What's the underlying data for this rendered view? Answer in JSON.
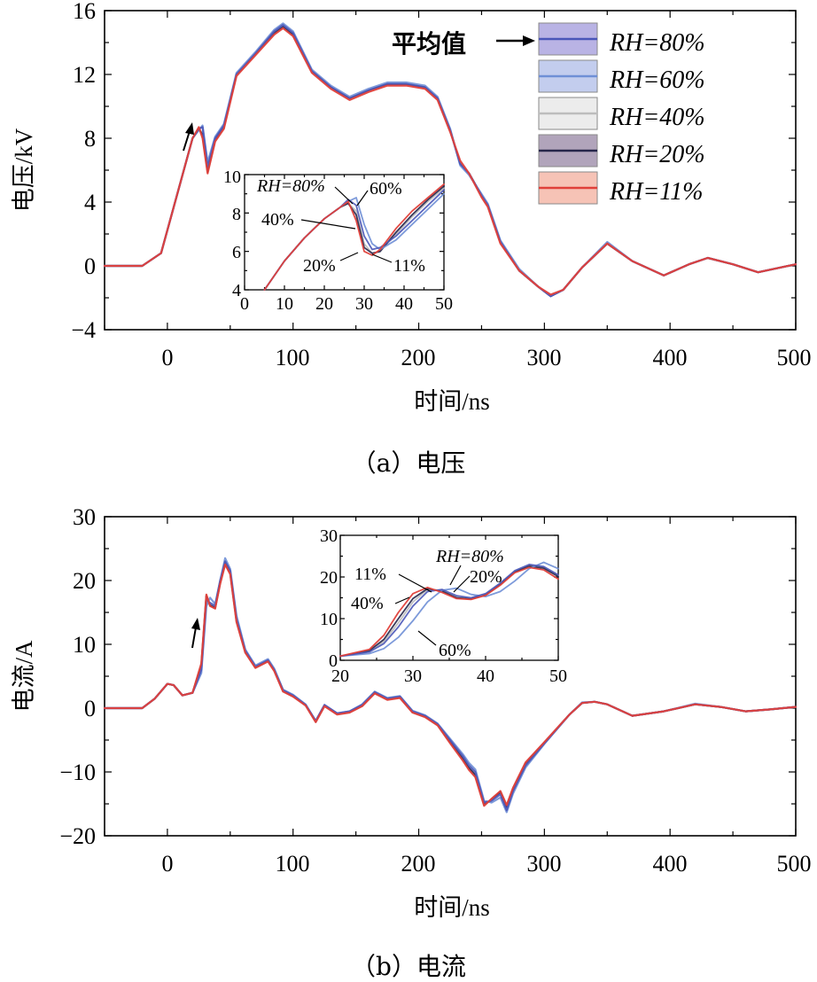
{
  "panels": [
    {
      "id": "a",
      "caption": "（a）电压",
      "ylabel": "电压/kV",
      "xlabel": "时间/ns",
      "ylim": [
        -4,
        16
      ],
      "yticks": [
        "−4",
        "0",
        "4",
        "8",
        "12",
        "16"
      ],
      "xticks": [
        "0",
        "100",
        "200",
        "300",
        "400",
        "500"
      ],
      "legend_title": "平均值",
      "legend": [
        "RH=80%",
        "RH=60%",
        "RH=40%",
        "RH=20%",
        "RH=11%"
      ],
      "inset": {
        "xticks": [
          "0",
          "10",
          "20",
          "30",
          "40",
          "50"
        ],
        "yticks": [
          "4",
          "6",
          "8",
          "10"
        ],
        "labels": [
          "RH=80%",
          "60%",
          "40%",
          "20%",
          "11%"
        ]
      }
    },
    {
      "id": "b",
      "caption": "（b）电流",
      "ylabel": "电流/A",
      "xlabel": "时间/ns",
      "ylim": [
        -20,
        30
      ],
      "yticks": [
        "−20",
        "−10",
        "0",
        "10",
        "20",
        "30"
      ],
      "xticks": [
        "0",
        "100",
        "200",
        "300",
        "400",
        "500"
      ],
      "inset": {
        "xticks": [
          "20",
          "30",
          "40",
          "50"
        ],
        "yticks": [
          "0",
          "10",
          "20",
          "30"
        ],
        "labels": [
          "RH=80%",
          "11%",
          "40%",
          "20%",
          "60%"
        ]
      }
    }
  ],
  "colors": {
    "RH=80%": "#4a56b8",
    "RH=60%": "#6f8fd6",
    "RH=40%": "#bdbdbd",
    "RH=20%": "#26264a",
    "RH=11%": "#e0403a"
  },
  "chart_data": [
    {
      "type": "line",
      "title": "",
      "xlabel": "时间/ns",
      "ylabel": "电压/kV",
      "xlim": [
        -50,
        500
      ],
      "ylim": [
        -4,
        16
      ],
      "x": [
        -50,
        -20,
        -5,
        20,
        25,
        28,
        32,
        38,
        45,
        55,
        70,
        85,
        92,
        100,
        115,
        130,
        145,
        160,
        175,
        190,
        205,
        215,
        225,
        233,
        240,
        250,
        255,
        265,
        280,
        295,
        305,
        315,
        330,
        350,
        370,
        395,
        415,
        430,
        450,
        470,
        500
      ],
      "series": [
        {
          "name": "RH=80%",
          "values": [
            0,
            0,
            0.8,
            8.0,
            8.6,
            8.7,
            6.2,
            8.0,
            8.8,
            12.0,
            13.3,
            14.7,
            15.1,
            14.6,
            12.2,
            11.2,
            10.5,
            11.0,
            11.4,
            11.4,
            11.2,
            10.5,
            8.5,
            6.4,
            5.8,
            4.4,
            3.8,
            1.5,
            -0.3,
            -1.3,
            -1.9,
            -1.5,
            -0.1,
            1.4,
            0.3,
            -0.6,
            0.1,
            0.5,
            0.1,
            -0.4,
            0.1
          ]
        },
        {
          "name": "RH=60%",
          "values": [
            0,
            0,
            0.8,
            8.0,
            8.5,
            8.8,
            6.5,
            8.1,
            8.9,
            12.1,
            13.4,
            14.8,
            15.2,
            14.7,
            12.3,
            11.3,
            10.6,
            11.1,
            11.5,
            11.5,
            11.3,
            10.6,
            8.6,
            6.3,
            5.7,
            4.5,
            3.9,
            1.6,
            -0.2,
            -1.3,
            -1.9,
            -1.5,
            -0.1,
            1.5,
            0.3,
            -0.6,
            0.1,
            0.5,
            0.1,
            -0.4,
            0.1
          ]
        },
        {
          "name": "RH=40%",
          "values": [
            0,
            0,
            0.8,
            8.0,
            8.6,
            8.3,
            5.9,
            7.9,
            8.7,
            12.0,
            13.3,
            14.6,
            15.0,
            14.5,
            12.2,
            11.2,
            10.5,
            11.0,
            11.4,
            11.4,
            11.2,
            10.5,
            8.5,
            6.4,
            5.8,
            4.4,
            3.8,
            1.5,
            -0.3,
            -1.3,
            -1.9,
            -1.5,
            -0.1,
            1.4,
            0.3,
            -0.6,
            0.1,
            0.5,
            0.1,
            -0.4,
            0.1
          ]
        },
        {
          "name": "RH=20%",
          "values": [
            0,
            0,
            0.8,
            8.0,
            8.6,
            8.2,
            5.9,
            7.9,
            8.7,
            12.0,
            13.3,
            14.6,
            15.0,
            14.5,
            12.2,
            11.2,
            10.5,
            11.0,
            11.4,
            11.4,
            11.2,
            10.5,
            8.5,
            6.4,
            5.8,
            4.4,
            3.8,
            1.5,
            -0.3,
            -1.3,
            -1.9,
            -1.5,
            -0.1,
            1.4,
            0.3,
            -0.6,
            0.1,
            0.5,
            0.1,
            -0.4,
            0.1
          ]
        },
        {
          "name": "RH=11%",
          "values": [
            0,
            0,
            0.8,
            8.0,
            8.7,
            8.0,
            5.8,
            7.8,
            8.6,
            11.9,
            13.2,
            14.5,
            14.9,
            14.4,
            12.1,
            11.1,
            10.4,
            10.9,
            11.3,
            11.3,
            11.1,
            10.4,
            8.4,
            6.6,
            5.8,
            4.3,
            3.7,
            1.4,
            -0.3,
            -1.3,
            -1.8,
            -1.5,
            -0.1,
            1.4,
            0.3,
            -0.6,
            0.1,
            0.5,
            0.1,
            -0.4,
            0.1
          ]
        }
      ]
    },
    {
      "type": "line",
      "title": "",
      "xlabel": "",
      "ylabel": "",
      "xlim": [
        0,
        50
      ],
      "ylim": [
        4,
        10
      ],
      "x": [
        5,
        10,
        15,
        20,
        24,
        26,
        28,
        30,
        32,
        34,
        38,
        42,
        46,
        50
      ],
      "series": [
        {
          "name": "RH=80%",
          "values": [
            4.0,
            5.5,
            6.7,
            7.7,
            8.3,
            8.7,
            8.4,
            6.8,
            6.1,
            6.2,
            6.8,
            7.6,
            8.4,
            9.2
          ]
        },
        {
          "name": "RH=60%",
          "values": [
            4.0,
            5.5,
            6.7,
            7.7,
            8.3,
            8.6,
            8.8,
            7.4,
            6.4,
            6.1,
            6.6,
            7.4,
            8.2,
            9.0
          ]
        },
        {
          "name": "RH=40%",
          "values": [
            4.0,
            5.5,
            6.7,
            7.7,
            8.3,
            8.5,
            8.1,
            6.4,
            5.9,
            6.0,
            6.9,
            7.8,
            8.6,
            9.3
          ]
        },
        {
          "name": "RH=20%",
          "values": [
            4.0,
            5.5,
            6.7,
            7.7,
            8.3,
            8.5,
            7.9,
            6.2,
            5.9,
            6.0,
            7.0,
            7.9,
            8.7,
            9.4
          ]
        },
        {
          "name": "RH=11%",
          "values": [
            4.0,
            5.5,
            6.7,
            7.7,
            8.3,
            8.6,
            7.6,
            6.0,
            5.8,
            6.1,
            7.2,
            8.1,
            8.8,
            9.5
          ]
        }
      ]
    },
    {
      "type": "line",
      "title": "",
      "xlabel": "时间/ns",
      "ylabel": "电流/A",
      "xlim": [
        -50,
        500
      ],
      "ylim": [
        -20,
        30
      ],
      "x": [
        -50,
        -20,
        -10,
        0,
        5,
        12,
        20,
        27,
        31,
        34,
        38,
        42,
        46,
        50,
        55,
        62,
        70,
        80,
        85,
        92,
        100,
        110,
        118,
        125,
        135,
        145,
        155,
        165,
        175,
        185,
        195,
        205,
        215,
        225,
        235,
        240,
        245,
        252,
        258,
        265,
        270,
        275,
        285,
        300,
        320,
        330,
        340,
        350,
        370,
        395,
        420,
        440,
        460,
        480,
        500
      ],
      "series": [
        {
          "name": "RH=80%",
          "values": [
            0,
            0,
            1.5,
            3.8,
            3.6,
            2.0,
            2.4,
            6.0,
            17.0,
            16.5,
            16.0,
            20.0,
            23.0,
            21.5,
            14.0,
            9.0,
            6.5,
            7.5,
            6.0,
            2.8,
            2.0,
            0.5,
            -2.0,
            0.5,
            -0.8,
            -0.5,
            0.5,
            2.5,
            1.5,
            1.8,
            -0.5,
            -1.2,
            -2.5,
            -5.0,
            -7.5,
            -9.0,
            -10.0,
            -14.8,
            -14.5,
            -13.5,
            -16.0,
            -13.0,
            -9.0,
            -5.5,
            -1.0,
            0.8,
            1.0,
            0.6,
            -1.2,
            -0.5,
            0.6,
            0.2,
            -0.5,
            -0.2,
            0.2
          ]
        },
        {
          "name": "RH=60%",
          "values": [
            0,
            0,
            1.5,
            3.8,
            3.6,
            2.0,
            2.4,
            5.5,
            16.0,
            17.3,
            16.3,
            20.0,
            23.5,
            21.8,
            14.5,
            9.2,
            6.7,
            7.7,
            6.2,
            2.9,
            2.1,
            0.6,
            -2.0,
            0.5,
            -0.8,
            -0.5,
            0.6,
            2.6,
            1.6,
            1.9,
            -0.4,
            -1.1,
            -2.4,
            -4.8,
            -7.2,
            -8.6,
            -9.6,
            -14.5,
            -14.8,
            -14.0,
            -16.3,
            -13.4,
            -9.3,
            -5.6,
            -1.0,
            0.9,
            1.0,
            0.6,
            -1.2,
            -0.5,
            0.7,
            0.2,
            -0.5,
            -0.2,
            0.2
          ]
        },
        {
          "name": "RH=40%",
          "values": [
            0,
            0,
            1.5,
            3.8,
            3.6,
            2.0,
            2.4,
            6.5,
            17.5,
            16.2,
            15.8,
            19.8,
            22.8,
            21.3,
            13.8,
            8.9,
            6.4,
            7.4,
            5.9,
            2.7,
            1.9,
            0.5,
            -2.1,
            0.4,
            -0.9,
            -0.6,
            0.4,
            2.4,
            1.4,
            1.7,
            -0.6,
            -1.3,
            -2.6,
            -5.2,
            -7.8,
            -9.3,
            -10.4,
            -15.0,
            -14.4,
            -13.2,
            -15.6,
            -12.8,
            -8.8,
            -5.4,
            -1.0,
            0.8,
            1.0,
            0.6,
            -1.2,
            -0.5,
            0.6,
            0.2,
            -0.5,
            -0.2,
            0.2
          ]
        },
        {
          "name": "RH=20%",
          "values": [
            0,
            0,
            1.5,
            3.8,
            3.6,
            2.0,
            2.4,
            6.7,
            17.6,
            16.1,
            15.7,
            19.7,
            22.7,
            21.2,
            13.7,
            8.8,
            6.4,
            7.4,
            5.9,
            2.7,
            1.9,
            0.5,
            -2.1,
            0.4,
            -0.9,
            -0.6,
            0.4,
            2.4,
            1.4,
            1.7,
            -0.6,
            -1.3,
            -2.6,
            -5.3,
            -7.9,
            -9.4,
            -10.5,
            -15.1,
            -14.3,
            -13.1,
            -15.5,
            -12.7,
            -8.7,
            -5.4,
            -1.0,
            0.8,
            1.0,
            0.6,
            -1.2,
            -0.5,
            0.6,
            0.2,
            -0.5,
            -0.2,
            0.2
          ]
        },
        {
          "name": "RH=11%",
          "values": [
            0,
            0,
            1.5,
            3.8,
            3.6,
            2.0,
            2.4,
            7.0,
            17.8,
            16.0,
            15.6,
            19.5,
            22.5,
            21.0,
            13.5,
            8.7,
            6.3,
            7.3,
            5.8,
            2.6,
            1.8,
            0.4,
            -2.2,
            0.3,
            -1.0,
            -0.7,
            0.3,
            2.3,
            1.3,
            1.6,
            -0.7,
            -1.4,
            -2.7,
            -5.5,
            -8.2,
            -9.7,
            -10.8,
            -15.3,
            -14.2,
            -13.0,
            -15.2,
            -12.5,
            -8.5,
            -5.3,
            -1.0,
            0.8,
            1.0,
            0.6,
            -1.2,
            -0.5,
            0.6,
            0.2,
            -0.5,
            -0.2,
            0.2
          ]
        }
      ]
    },
    {
      "type": "line",
      "title": "",
      "xlabel": "",
      "ylabel": "",
      "xlim": [
        20,
        50
      ],
      "ylim": [
        0,
        30
      ],
      "x": [
        20,
        24,
        26,
        28,
        30,
        32,
        34,
        36,
        38,
        40,
        42,
        44,
        46,
        48,
        50
      ],
      "series": [
        {
          "name": "RH=80%",
          "values": [
            1.0,
            2.0,
            4.0,
            8.0,
            13.0,
            16.5,
            17.0,
            15.5,
            15.0,
            16.0,
            18.5,
            21.5,
            23.0,
            22.5,
            20.5
          ]
        },
        {
          "name": "RH=60%",
          "values": [
            1.0,
            1.6,
            2.8,
            5.5,
            9.5,
            14.0,
            16.8,
            17.3,
            15.8,
            15.3,
            16.5,
            19.0,
            22.0,
            23.5,
            22.0
          ]
        },
        {
          "name": "RH=40%",
          "values": [
            1.0,
            2.1,
            4.5,
            9.0,
            14.0,
            17.0,
            16.8,
            15.2,
            14.8,
            15.8,
            18.3,
            21.3,
            22.8,
            22.3,
            20.3
          ]
        },
        {
          "name": "RH=20%",
          "values": [
            1.0,
            2.3,
            5.0,
            10.0,
            14.8,
            17.2,
            16.6,
            15.0,
            14.7,
            15.7,
            18.2,
            21.2,
            22.6,
            22.1,
            20.1
          ]
        },
        {
          "name": "RH=11%",
          "values": [
            1.0,
            2.6,
            6.0,
            11.5,
            16.0,
            17.5,
            16.3,
            14.8,
            14.6,
            15.6,
            18.0,
            21.0,
            22.3,
            21.7,
            19.5
          ]
        }
      ]
    }
  ]
}
